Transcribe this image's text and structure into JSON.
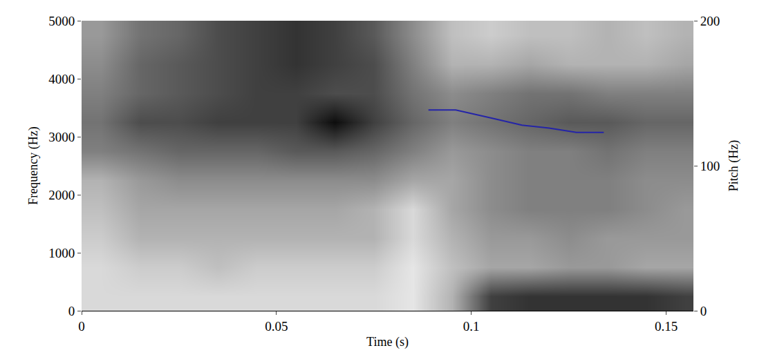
{
  "chart_data": {
    "type": "heatmap",
    "xlabel": "Time (s)",
    "ylabel": "Frequency (Hz)",
    "y2label": "Pitch (Hz)",
    "x": [
      0.005,
      0.015,
      0.025,
      0.035,
      0.045,
      0.055,
      0.065,
      0.075,
      0.085,
      0.095,
      0.105,
      0.115,
      0.125,
      0.135,
      0.145,
      0.155
    ],
    "y": [
      250,
      750,
      1250,
      1750,
      2250,
      2750,
      3250,
      3750,
      4250,
      4750
    ],
    "cells": [
      [
        0.15,
        0.15,
        0.15,
        0.15,
        0.15,
        0.15,
        0.15,
        0.15,
        0.1,
        0.3,
        0.75,
        0.8,
        0.8,
        0.8,
        0.8,
        0.75
      ],
      [
        0.15,
        0.2,
        0.2,
        0.25,
        0.2,
        0.2,
        0.2,
        0.2,
        0.1,
        0.25,
        0.35,
        0.35,
        0.4,
        0.4,
        0.35,
        0.35
      ],
      [
        0.2,
        0.3,
        0.3,
        0.3,
        0.3,
        0.3,
        0.3,
        0.3,
        0.15,
        0.3,
        0.4,
        0.4,
        0.45,
        0.4,
        0.4,
        0.4
      ],
      [
        0.25,
        0.35,
        0.35,
        0.35,
        0.35,
        0.35,
        0.35,
        0.3,
        0.15,
        0.35,
        0.45,
        0.5,
        0.5,
        0.5,
        0.45,
        0.4
      ],
      [
        0.3,
        0.4,
        0.45,
        0.45,
        0.45,
        0.45,
        0.45,
        0.45,
        0.35,
        0.35,
        0.45,
        0.5,
        0.5,
        0.5,
        0.45,
        0.45
      ],
      [
        0.5,
        0.55,
        0.6,
        0.6,
        0.6,
        0.65,
        0.65,
        0.6,
        0.5,
        0.4,
        0.45,
        0.5,
        0.5,
        0.55,
        0.5,
        0.5
      ],
      [
        0.55,
        0.7,
        0.7,
        0.75,
        0.75,
        0.75,
        0.95,
        0.75,
        0.6,
        0.5,
        0.55,
        0.6,
        0.65,
        0.65,
        0.6,
        0.6
      ],
      [
        0.5,
        0.6,
        0.65,
        0.7,
        0.75,
        0.75,
        0.7,
        0.7,
        0.55,
        0.45,
        0.5,
        0.55,
        0.55,
        0.5,
        0.5,
        0.5
      ],
      [
        0.45,
        0.6,
        0.65,
        0.7,
        0.75,
        0.8,
        0.75,
        0.7,
        0.5,
        0.3,
        0.3,
        0.35,
        0.3,
        0.3,
        0.3,
        0.35
      ],
      [
        0.4,
        0.55,
        0.6,
        0.7,
        0.75,
        0.8,
        0.75,
        0.65,
        0.45,
        0.25,
        0.2,
        0.25,
        0.25,
        0.3,
        0.25,
        0.3
      ]
    ],
    "zlim": [
      0,
      1
    ],
    "series": [
      {
        "type": "line",
        "axis": "y2",
        "color": "#2424a8",
        "x": [
          0.089,
          0.096,
          0.105,
          0.113,
          0.12,
          0.127,
          0.134
        ],
        "values": [
          138.5,
          138.5,
          133,
          128,
          126,
          123,
          123
        ]
      }
    ],
    "xlim": [
      0,
      0.157
    ],
    "xticks": [
      0,
      0.05,
      0.1,
      0.15
    ],
    "ylim": [
      0,
      5000
    ],
    "yticks": [
      0,
      1000,
      2000,
      3000,
      4000,
      5000
    ],
    "y2lim": [
      0,
      200
    ],
    "y2ticks": [
      0,
      100,
      200
    ],
    "grid": true
  }
}
